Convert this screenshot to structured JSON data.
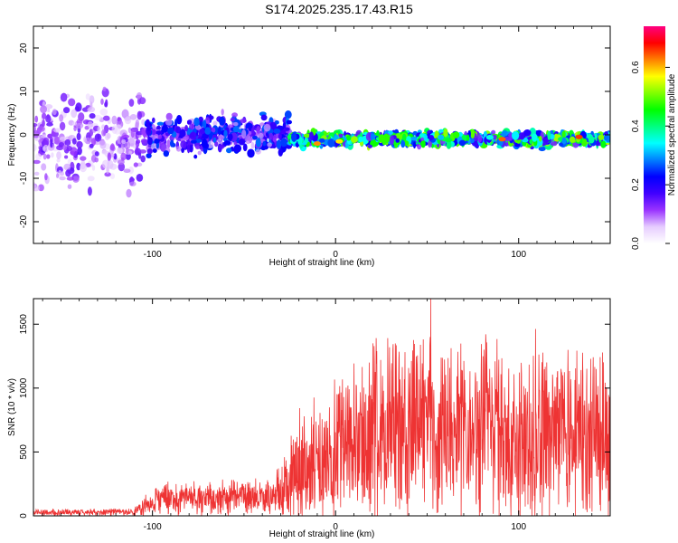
{
  "title": "S174.2025.235.17.43.R15",
  "chart_data": [
    {
      "type": "heatmap",
      "xlabel": "Height of straight line (km)",
      "ylabel": "Frequency (Hz)",
      "xlim": [
        -165,
        150
      ],
      "ylim": [
        -25,
        25
      ],
      "x_ticks": [
        -100,
        0,
        100
      ],
      "y_ticks": [
        -20,
        -10,
        0,
        10,
        20
      ],
      "colorbar": {
        "label": "Normalized spectral amplitude",
        "range": [
          0,
          0.74
        ],
        "ticks": [
          0.0,
          0.2,
          0.4,
          0.6
        ],
        "colormap": [
          "#ffffff",
          "#e6ccff",
          "#9933ff",
          "#4000ff",
          "#0000ff",
          "#0080ff",
          "#00ffff",
          "#00ff80",
          "#00ff00",
          "#80ff00",
          "#ffff00",
          "#ff8000",
          "#ff0000",
          "#ff0080"
        ]
      },
      "regions": [
        {
          "x": [
            -165,
            -105
          ],
          "center_hz": -2,
          "spread_hz": 24,
          "amplitude": 0.1
        },
        {
          "x": [
            -105,
            -25
          ],
          "center_hz": 0,
          "spread_hz": 8,
          "amplitude": 0.18
        },
        {
          "x": [
            -25,
            150
          ],
          "center_hz": -1,
          "spread_hz": 3,
          "amplitude": 0.35
        }
      ],
      "peaks": [
        {
          "x": -10,
          "y": -2,
          "value": 0.62
        },
        {
          "x": 2,
          "y": -1.5,
          "value": 0.58
        },
        {
          "x": 91,
          "y": -1,
          "value": 0.64
        },
        {
          "x": 133,
          "y": -0.5,
          "value": 0.66
        }
      ]
    },
    {
      "type": "line",
      "xlabel": "Height of straight line (km)",
      "ylabel": "SNR (10 * v/v)",
      "xlim": [
        -165,
        150
      ],
      "ylim": [
        0,
        1700
      ],
      "x_ticks": [
        -100,
        0,
        100
      ],
      "y_ticks": [
        0,
        500,
        1000,
        1500
      ],
      "color": "#ee3333",
      "envelope": [
        {
          "x": -165,
          "mean": 25,
          "noise": 30
        },
        {
          "x": -110,
          "mean": 30,
          "noise": 35
        },
        {
          "x": -98,
          "mean": 130,
          "noise": 150
        },
        {
          "x": -60,
          "mean": 140,
          "noise": 160
        },
        {
          "x": -35,
          "mean": 150,
          "noise": 170
        },
        {
          "x": -25,
          "mean": 330,
          "noise": 450
        },
        {
          "x": 0,
          "mean": 500,
          "noise": 650
        },
        {
          "x": 20,
          "mean": 620,
          "noise": 800
        },
        {
          "x": 50,
          "mean": 700,
          "noise": 900
        },
        {
          "x": 100,
          "mean": 650,
          "noise": 850
        },
        {
          "x": 150,
          "mean": 600,
          "noise": 800
        }
      ],
      "annotated_max": {
        "x": 52,
        "y": 1700
      }
    }
  ]
}
